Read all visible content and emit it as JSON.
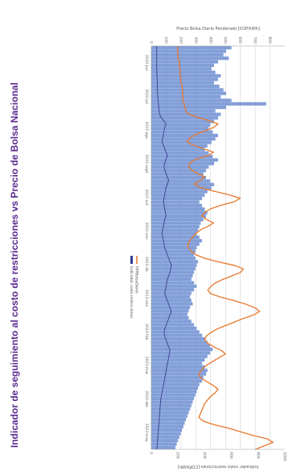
{
  "chart_data": {
    "type": "bar",
    "orientation": "rotated-90-clockwise",
    "title": "Indicador de seguimiento al costo de restricciones vs Precio de Bolsa Nacional",
    "y_left_label": "Precio Bolsa Diario Ponderado [COP/kWh]",
    "y_right_label": "Indicador costo restricciones [COP/kWh]",
    "y_left_ticks": [
      0,
      100,
      200,
      300,
      400,
      500,
      600,
      700,
      800
    ],
    "y_left_range": [
      0,
      900
    ],
    "y_right_ticks": [
      0,
      200,
      400,
      600,
      800,
      1000
    ],
    "y_right_range": [
      0,
      1000
    ],
    "x_ticks": [
      "2022-jun",
      "2022-jul",
      "2022-ago",
      "2022-sept",
      "2022-oct",
      "2022-nov",
      "2022-dic",
      "2023-ene",
      "2023-feb",
      "2023-mar",
      "2023-abr",
      "2023-may"
    ],
    "legend_placement": "bottom-right",
    "grid": true,
    "series": [
      {
        "name": "PPPBolsaDiario",
        "kind": "line",
        "color": "#e6782c",
        "axis": "left",
        "values": [
          180,
          175,
          182,
          178,
          185,
          190,
          188,
          195,
          192,
          200,
          198,
          205,
          210,
          208,
          215,
          212,
          218,
          225,
          230,
          240,
          300,
          380,
          450,
          420,
          360,
          300,
          260,
          240,
          280,
          350,
          420,
          380,
          300,
          260,
          250,
          270,
          310,
          360,
          330,
          290,
          330,
          420,
          520,
          600,
          560,
          470,
          400,
          360,
          340,
          370,
          420,
          380,
          330,
          300,
          280,
          260,
          245,
          250,
          270,
          300,
          360,
          450,
          560,
          620,
          600,
          540,
          480,
          430,
          400,
          380,
          400,
          470,
          560,
          640,
          700,
          730,
          690,
          620,
          560,
          500,
          440,
          400,
          370,
          360,
          380,
          420,
          470,
          500,
          460,
          420,
          380,
          350,
          330,
          320,
          340,
          380,
          420,
          450,
          430,
          400,
          380,
          360,
          350,
          340,
          330,
          320,
          350,
          420,
          520,
          600,
          680,
          780,
          820,
          760,
          700
        ]
      },
      {
        "name": "Indicador costo restricciones",
        "kind": "bar",
        "color": "#6d8ed1",
        "axis": "right",
        "values": [
          600,
          560,
          540,
          580,
          500,
          470,
          450,
          480,
          520,
          500,
          470,
          510,
          540,
          560,
          520,
          600,
          860,
          560,
          480,
          520,
          500,
          470,
          440,
          430,
          460,
          500,
          480,
          450,
          420,
          400,
          430,
          460,
          500,
          470,
          430,
          410,
          390,
          410,
          440,
          470,
          450,
          420,
          400,
          380,
          360,
          380,
          400,
          420,
          410,
          390,
          370,
          360,
          350,
          340,
          360,
          380,
          360,
          340,
          330,
          320,
          330,
          350,
          340,
          330,
          320,
          310,
          300,
          320,
          340,
          320,
          300,
          290,
          300,
          310,
          290,
          280,
          270,
          280,
          300,
          320,
          340,
          360,
          380,
          400,
          420,
          440,
          460,
          440,
          420,
          400,
          380,
          400,
          420,
          410,
          390,
          380,
          360,
          350,
          340,
          330,
          320,
          310,
          300,
          290,
          280,
          270,
          260,
          250,
          240,
          230,
          220,
          210,
          200,
          190,
          180
        ]
      },
      {
        "name": "Indicador costo restricciones (marcas)",
        "kind": "line",
        "color": "#3a3f8f",
        "axis": "right",
        "values": [
          40,
          40,
          42,
          40,
          41,
          40,
          40,
          42,
          41,
          43,
          44,
          45,
          44,
          46,
          48,
          50,
          52,
          55,
          58,
          60,
          70,
          90,
          110,
          100,
          95,
          90,
          85,
          80,
          90,
          100,
          110,
          120,
          110,
          100,
          95,
          100,
          110,
          120,
          130,
          120,
          110,
          105,
          100,
          95,
          90,
          95,
          100,
          105,
          110,
          100,
          95,
          90,
          85,
          80,
          85,
          90,
          95,
          100,
          110,
          120,
          130,
          140,
          150,
          145,
          140,
          130,
          120,
          115,
          110,
          105,
          100,
          110,
          120,
          130,
          140,
          150,
          140,
          130,
          120,
          110,
          100,
          95,
          100,
          110,
          120,
          130,
          140,
          135,
          130,
          125,
          120,
          115,
          110,
          105,
          100,
          95,
          90,
          85,
          80,
          75,
          70,
          68,
          66,
          64,
          62,
          60,
          58,
          56,
          54,
          52,
          50,
          48,
          46,
          44,
          42
        ]
      }
    ]
  }
}
